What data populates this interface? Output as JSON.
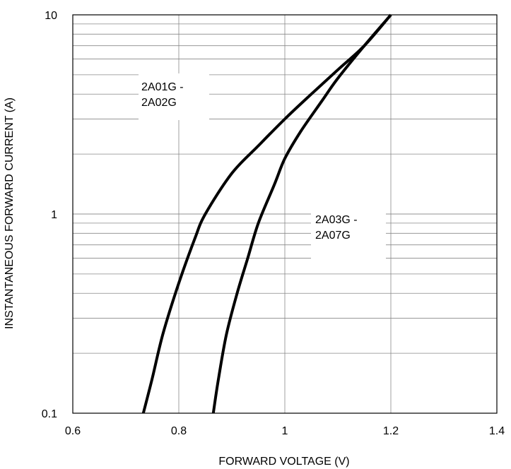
{
  "chart_data": {
    "type": "line",
    "title": "",
    "xlabel": "FORWARD VOLTAGE (V)",
    "ylabel": "INSTANTANEOUS FORWARD CURRENT (A)",
    "xlim": [
      0.6,
      1.4
    ],
    "ylim": [
      0.1,
      10
    ],
    "yscale": "log",
    "grid": true,
    "x_ticks": [
      "0.6",
      "0.8",
      "1",
      "1.2",
      "1.4"
    ],
    "y_ticks": [
      "0.1",
      "1",
      "10"
    ],
    "series": [
      {
        "name": "2A01G - 2A02G",
        "points": [
          [
            0.733,
            0.1
          ],
          [
            0.75,
            0.15
          ],
          [
            0.77,
            0.25
          ],
          [
            0.8,
            0.45
          ],
          [
            0.83,
            0.75
          ],
          [
            0.85,
            1.0
          ],
          [
            0.9,
            1.6
          ],
          [
            0.95,
            2.2
          ],
          [
            1.0,
            3.0
          ],
          [
            1.05,
            4.0
          ],
          [
            1.1,
            5.3
          ],
          [
            1.15,
            7.0
          ],
          [
            1.2,
            10.0
          ]
        ]
      },
      {
        "name": "2A03G - 2A07G",
        "points": [
          [
            0.865,
            0.1
          ],
          [
            0.875,
            0.15
          ],
          [
            0.89,
            0.25
          ],
          [
            0.91,
            0.4
          ],
          [
            0.93,
            0.6
          ],
          [
            0.95,
            0.9
          ],
          [
            0.98,
            1.4
          ],
          [
            1.0,
            1.9
          ],
          [
            1.03,
            2.6
          ],
          [
            1.07,
            3.7
          ],
          [
            1.1,
            4.8
          ],
          [
            1.15,
            7.0
          ],
          [
            1.2,
            10.0
          ]
        ]
      }
    ],
    "annotations": [
      {
        "lines": [
          "2A01G -",
          "2A02G"
        ]
      },
      {
        "lines": [
          "2A03G -",
          "2A07G"
        ]
      }
    ]
  }
}
